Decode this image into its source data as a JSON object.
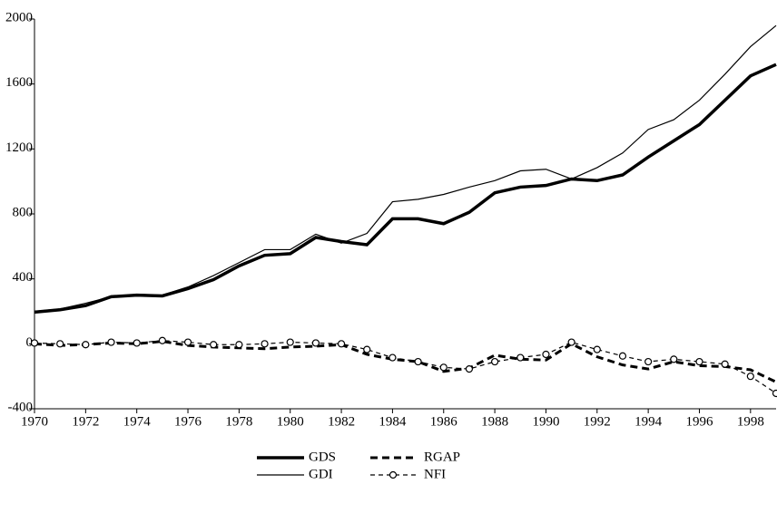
{
  "chart_data": {
    "type": "line",
    "x": [
      1970,
      1971,
      1972,
      1973,
      1974,
      1975,
      1976,
      1977,
      1978,
      1979,
      1980,
      1981,
      1982,
      1983,
      1984,
      1985,
      1986,
      1987,
      1988,
      1989,
      1990,
      1991,
      1992,
      1993,
      1994,
      1995,
      1996,
      1997,
      1998,
      1999
    ],
    "xlim": [
      1970,
      1999
    ],
    "xticks": [
      1970,
      1972,
      1974,
      1976,
      1978,
      1980,
      1982,
      1984,
      1986,
      1988,
      1990,
      1992,
      1994,
      1996,
      1998
    ],
    "ylim": [
      -400,
      2000
    ],
    "yticks": [
      -400,
      0,
      400,
      800,
      1200,
      1600,
      2000
    ],
    "legend": "bottom",
    "series": [
      {
        "name": "GDS",
        "color": "#000000",
        "linewidth": 3.5,
        "dash": false,
        "values": [
          195,
          210,
          235,
          290,
          300,
          295,
          340,
          395,
          480,
          545,
          555,
          655,
          630,
          610,
          770,
          770,
          740,
          810,
          930,
          965,
          975,
          1015,
          1005,
          1040,
          1150,
          1250,
          1350,
          1500,
          1650,
          1720
        ]
      },
      {
        "name": "RGAP",
        "color": "#000000",
        "linewidth": 3,
        "dash": true,
        "values": [
          0,
          -10,
          -5,
          5,
          0,
          15,
          -10,
          -20,
          -25,
          -30,
          -20,
          -15,
          -5,
          -65,
          -95,
          -110,
          -170,
          -150,
          -70,
          -95,
          -100,
          0,
          -80,
          -130,
          -155,
          -110,
          -135,
          -140,
          -160,
          -235
        ]
      },
      {
        "name": "GDI",
        "color": "#000000",
        "linewidth": 1.2,
        "dash": false,
        "values": [
          200,
          215,
          250,
          290,
          305,
          300,
          350,
          420,
          500,
          580,
          580,
          675,
          620,
          680,
          875,
          890,
          920,
          965,
          1005,
          1065,
          1075,
          1015,
          1085,
          1175,
          1320,
          1380,
          1500,
          1660,
          1830,
          1960
        ]
      },
      {
        "name": "NFI",
        "color": "#000000",
        "linewidth": 1.2,
        "dash": true,
        "marker": "circle",
        "values": [
          5,
          0,
          -5,
          10,
          5,
          20,
          10,
          -5,
          -5,
          0,
          10,
          5,
          0,
          -35,
          -85,
          -110,
          -145,
          -155,
          -110,
          -85,
          -65,
          10,
          -35,
          -75,
          -110,
          -95,
          -110,
          -125,
          -200,
          -305
        ]
      }
    ]
  }
}
